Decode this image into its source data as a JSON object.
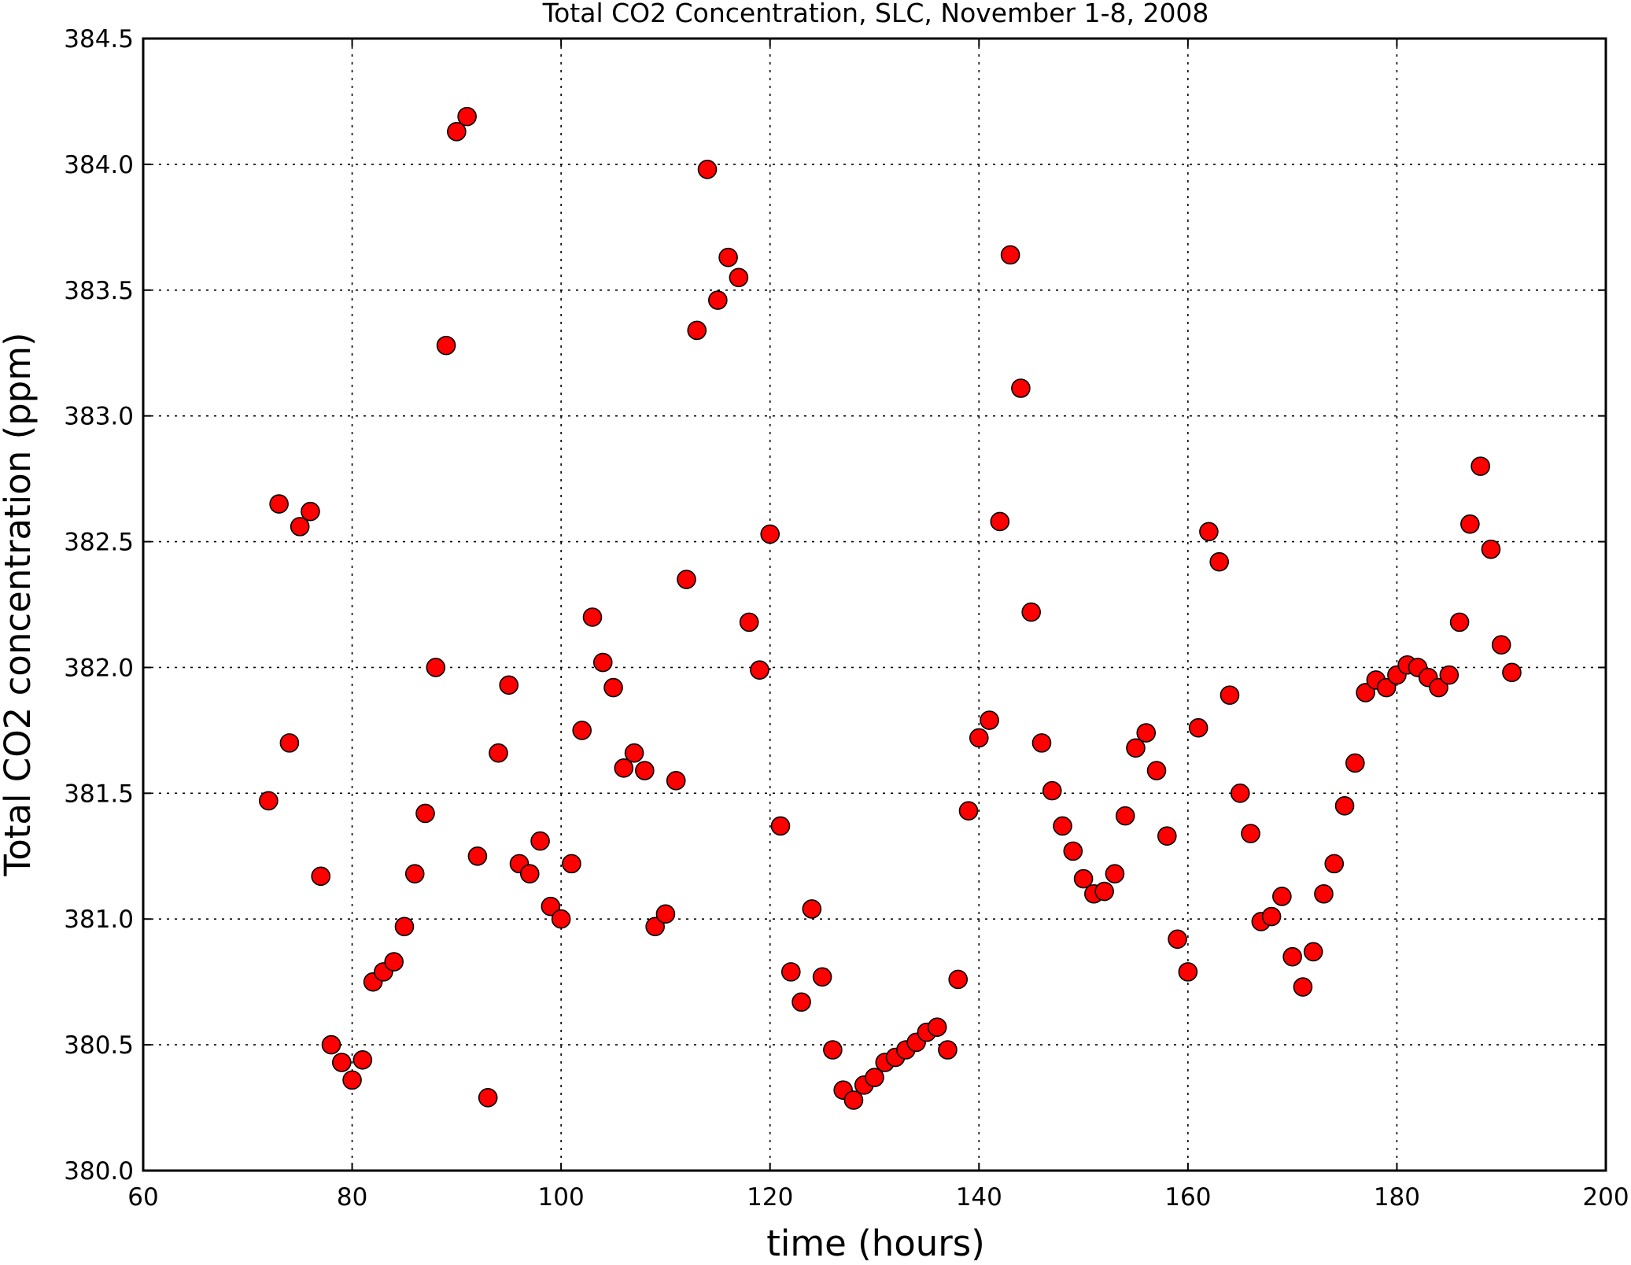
{
  "chart_data": {
    "type": "scatter",
    "title": "Total CO2 Concentration, SLC, November 1-8, 2008",
    "xlabel": "time (hours)",
    "ylabel": "Total CO2 concentration (ppm)",
    "xlim": [
      60,
      200
    ],
    "ylim": [
      380.0,
      384.5
    ],
    "xticks": [
      60,
      80,
      100,
      120,
      140,
      160,
      180,
      200
    ],
    "xtick_labels": [
      "60",
      "80",
      "100",
      "120",
      "140",
      "160",
      "180",
      "200"
    ],
    "yticks": [
      380.0,
      380.5,
      381.0,
      381.5,
      382.0,
      382.5,
      383.0,
      383.5,
      384.0,
      384.5
    ],
    "ytick_labels": [
      "380.0",
      "380.5",
      "381.0",
      "381.5",
      "382.0",
      "382.5",
      "383.0",
      "383.5",
      "384.0",
      "384.5"
    ],
    "grid": true,
    "marker_color": "#ff0000",
    "marker_edge_color": "#000000",
    "x": [
      72,
      73,
      74,
      75,
      76,
      77,
      78,
      79,
      80,
      81,
      82,
      83,
      84,
      85,
      86,
      87,
      88,
      89,
      90,
      91,
      92,
      93,
      94,
      95,
      96,
      97,
      98,
      99,
      100,
      101,
      102,
      103,
      104,
      105,
      106,
      107,
      108,
      109,
      110,
      111,
      112,
      113,
      114,
      115,
      116,
      117,
      118,
      119,
      120,
      121,
      122,
      123,
      124,
      125,
      126,
      127,
      128,
      129,
      130,
      131,
      132,
      133,
      134,
      135,
      136,
      137,
      138,
      139,
      140,
      141,
      142,
      143,
      144,
      145,
      146,
      147,
      148,
      149,
      150,
      151,
      152,
      153,
      154,
      155,
      156,
      157,
      158,
      159,
      160,
      161,
      162,
      163,
      164,
      165,
      166,
      167,
      168,
      169,
      170,
      171,
      172,
      173,
      174,
      175,
      176,
      177,
      178,
      179,
      180,
      181,
      182,
      183,
      184,
      185,
      186,
      187,
      188,
      189,
      190,
      191
    ],
    "y": [
      381.47,
      382.65,
      381.7,
      382.56,
      382.62,
      381.17,
      380.5,
      380.43,
      380.36,
      380.44,
      380.75,
      380.79,
      380.83,
      380.97,
      381.18,
      381.42,
      382.0,
      383.28,
      384.13,
      384.19,
      381.25,
      380.29,
      381.66,
      381.93,
      381.22,
      381.18,
      381.31,
      381.05,
      381.0,
      381.22,
      381.75,
      382.2,
      382.02,
      381.92,
      381.6,
      381.66,
      381.59,
      380.97,
      381.02,
      381.55,
      382.35,
      383.34,
      383.98,
      383.46,
      383.63,
      383.55,
      382.18,
      381.99,
      382.53,
      381.37,
      380.79,
      380.67,
      381.04,
      380.77,
      380.48,
      380.32,
      380.28,
      380.34,
      380.37,
      380.43,
      380.45,
      380.48,
      380.51,
      380.55,
      380.57,
      380.48,
      380.76,
      381.43,
      381.72,
      381.79,
      382.58,
      383.64,
      383.11,
      382.22,
      381.7,
      381.51,
      381.37,
      381.27,
      381.16,
      381.1,
      381.11,
      381.18,
      381.41,
      381.68,
      381.74,
      381.59,
      381.33,
      380.92,
      380.79,
      381.76,
      382.54,
      382.42,
      381.89,
      381.5,
      381.34,
      380.99,
      381.01,
      381.09,
      380.85,
      380.73,
      380.87,
      381.1,
      381.22,
      381.45,
      381.62,
      381.9,
      381.95,
      381.92,
      381.97,
      382.01,
      382.0,
      381.96,
      381.92,
      381.97,
      382.18,
      382.57,
      382.8,
      382.47,
      382.09,
      381.98
    ]
  }
}
